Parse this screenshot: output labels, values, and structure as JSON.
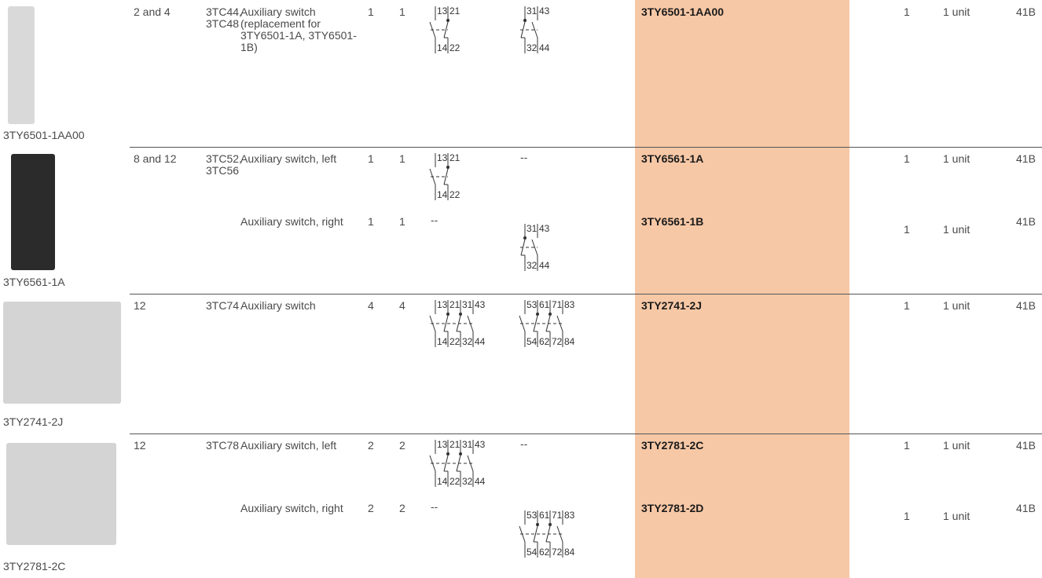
{
  "rows": [
    {
      "image_caption": "3TY6501-1AA00",
      "sizes": "2 and 4",
      "contactors": "3TC44, 3TC48",
      "items": [
        {
          "description": "Auxiliary switch (replacement for 3TY6501-1A, 3TY6501-1B)",
          "no": 1,
          "nc": 1,
          "diagram_1": {
            "top": [
              "13",
              "21"
            ],
            "bottom": [
              "14",
              "22"
            ]
          },
          "diagram_2": {
            "top": [
              "31",
              "43"
            ],
            "bottom": [
              "32",
              "44"
            ]
          },
          "order_no": "3TY6501-1AA00",
          "pu": 1,
          "ps": "1 unit",
          "pg": "41B"
        }
      ]
    },
    {
      "image_caption": "3TY6561-1A",
      "sizes": "8 and 12",
      "contactors": "3TC52, 3TC56",
      "items": [
        {
          "description": "Auxiliary switch, left",
          "no": 1,
          "nc": 1,
          "diagram_1": {
            "top": [
              "13",
              "21"
            ],
            "bottom": [
              "14",
              "22"
            ]
          },
          "diagram_2": "--",
          "order_no": "3TY6561-1A",
          "pu": 1,
          "ps": "1 unit",
          "pg": "41B"
        },
        {
          "description": "Auxiliary switch, right",
          "no": 1,
          "nc": 1,
          "diagram_1": "--",
          "diagram_2": {
            "top": [
              "31",
              "43"
            ],
            "bottom": [
              "32",
              "44"
            ]
          },
          "order_no": "3TY6561-1B",
          "pu": 1,
          "ps": "1 unit",
          "pg": "41B"
        }
      ]
    },
    {
      "image_caption": "3TY2741-2J",
      "sizes": "12",
      "contactors": "3TC74",
      "items": [
        {
          "description": "Auxiliary switch",
          "no": 4,
          "nc": 4,
          "diagram_1": {
            "top": [
              "13",
              "21",
              "31",
              "43"
            ],
            "bottom": [
              "14",
              "22",
              "32",
              "44"
            ]
          },
          "diagram_2": {
            "top": [
              "53",
              "61",
              "71",
              "83"
            ],
            "bottom": [
              "54",
              "62",
              "72",
              "84"
            ]
          },
          "order_no": "3TY2741-2J",
          "pu": 1,
          "ps": "1 unit",
          "pg": "41B"
        }
      ]
    },
    {
      "image_caption": "3TY2781-2C",
      "sizes": "12",
      "contactors": "3TC78",
      "items": [
        {
          "description": "Auxiliary switch, left",
          "no": 2,
          "nc": 2,
          "diagram_1": {
            "top": [
              "13",
              "21",
              "31",
              "43"
            ],
            "bottom": [
              "14",
              "22",
              "32",
              "44"
            ]
          },
          "diagram_2": "--",
          "order_no": "3TY2781-2C",
          "pu": 1,
          "ps": "1 unit",
          "pg": "41B"
        },
        {
          "description": "Auxiliary switch, right",
          "no": 2,
          "nc": 2,
          "diagram_1": "--",
          "diagram_2": {
            "top": [
              "53",
              "61",
              "71",
              "83"
            ],
            "bottom": [
              "54",
              "62",
              "72",
              "84"
            ]
          },
          "order_no": "3TY2781-2D",
          "pu": 1,
          "ps": "1 unit",
          "pg": "41B"
        }
      ]
    }
  ]
}
